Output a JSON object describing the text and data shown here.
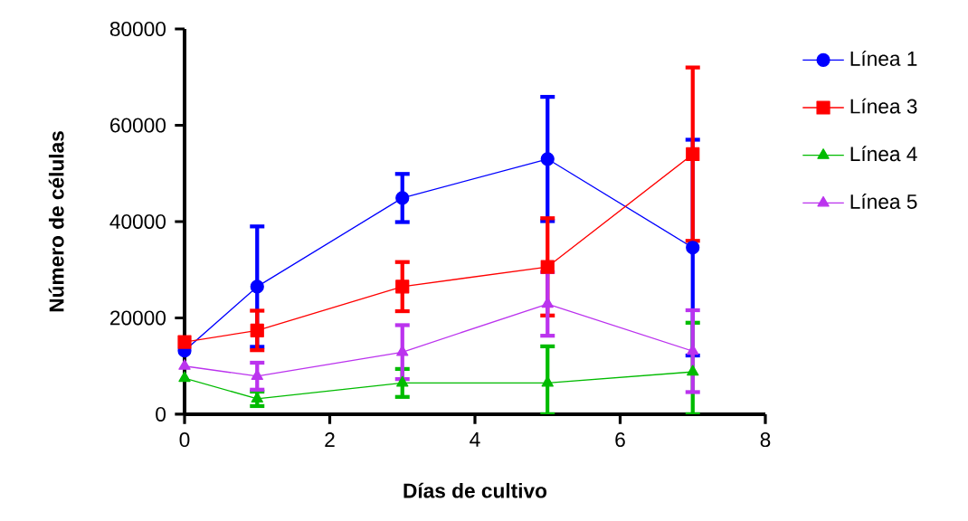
{
  "chart_data": {
    "type": "line",
    "xlabel": "Días de cultivo",
    "ylabel": "Número de células",
    "x": [
      0,
      1,
      3,
      5,
      7
    ],
    "xlim": [
      0,
      8
    ],
    "xticks": [
      0,
      2,
      4,
      6,
      8
    ],
    "ylim": [
      0,
      80000
    ],
    "yticks": [
      0,
      20000,
      40000,
      60000,
      80000
    ],
    "legend": "right",
    "grid": false,
    "line_style": "solid",
    "series": [
      {
        "name": "Línea 1",
        "color": "#0000ff",
        "marker": "circle",
        "values": [
          13200,
          26500,
          44900,
          53000,
          34600
        ],
        "errors": [
          null,
          12500,
          5000,
          12900,
          22400
        ]
      },
      {
        "name": "Línea 3",
        "color": "#ff0000",
        "marker": "square",
        "values": [
          15000,
          17400,
          26500,
          30600,
          54000
        ],
        "errors": [
          null,
          4100,
          5100,
          10100,
          18000
        ]
      },
      {
        "name": "Línea 4",
        "color": "#00bb00",
        "marker": "triangle",
        "values": [
          7500,
          3200,
          6500,
          6500,
          8800
        ],
        "errors": [
          null,
          1500,
          2900,
          [
            0,
            14100
          ],
          [
            0,
            19000
          ]
        ]
      },
      {
        "name": "Línea 5",
        "color": "#bb33ee",
        "marker": "triangle-down",
        "values": [
          10000,
          7900,
          12900,
          22900,
          13100
        ],
        "errors": [
          null,
          2800,
          5600,
          6600,
          8500
        ]
      }
    ]
  }
}
